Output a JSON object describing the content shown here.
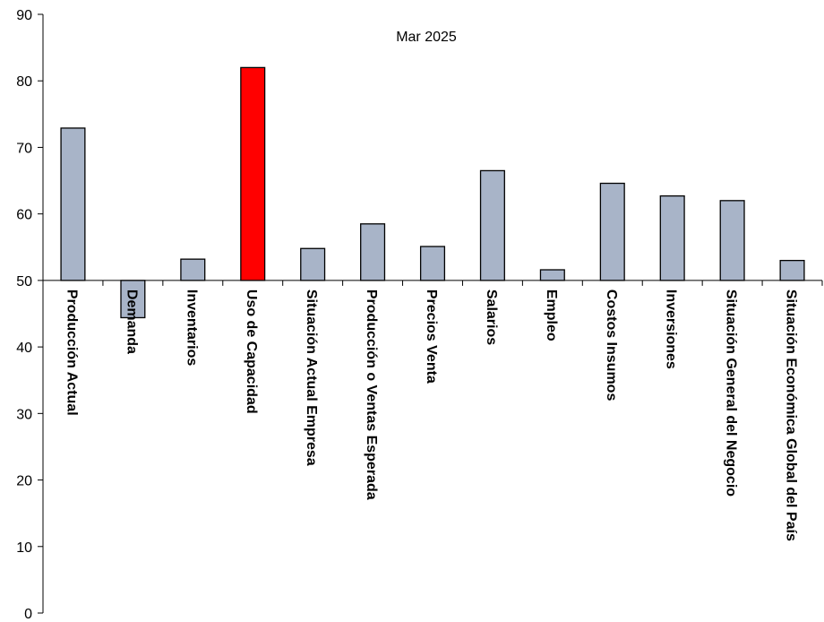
{
  "chart_data": {
    "type": "bar",
    "title": "Mar 2025",
    "xlabel": "",
    "ylabel": "",
    "ylim": [
      0,
      90
    ],
    "baseline": 50,
    "yticks": [
      0,
      10,
      20,
      30,
      40,
      50,
      60,
      70,
      80,
      90
    ],
    "grid": false,
    "legend": "none",
    "categories": [
      "Producción Actual",
      "Demanda",
      "Inventarios",
      "Uso de Capacidad",
      "Situación Actual Empresa",
      "Producción o Ventas Esperada",
      "Precios Venta",
      "Salarios",
      "Empleo",
      "Costos Insumos",
      "Inversiones",
      "Situación General del Negocio",
      "Situación Económica Global del País"
    ],
    "values": [
      72.9,
      44.4,
      53.2,
      82.0,
      54.8,
      58.5,
      55.1,
      66.5,
      51.6,
      64.6,
      62.7,
      62.0,
      53.0
    ],
    "colors": {
      "default": "#a8b4c8",
      "highlight": "#ff0000",
      "highlight_category": "Uso de Capacidad",
      "outline": "#000000",
      "axis": "#000000"
    }
  }
}
